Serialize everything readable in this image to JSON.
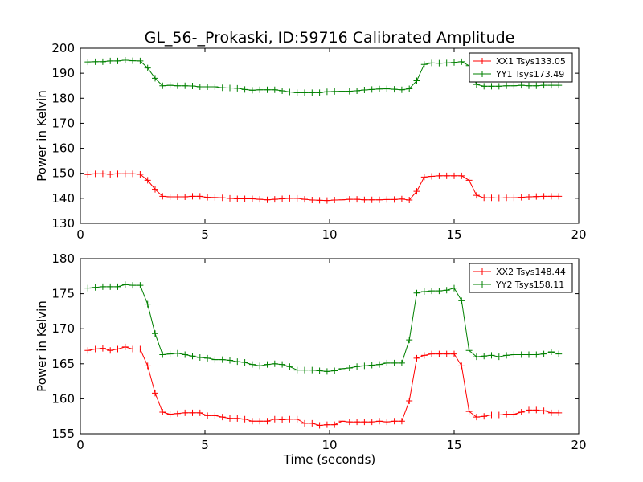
{
  "title": "GL_56-_Prokaski, ID:59716 Calibrated Amplitude",
  "colors": {
    "xx": "#ff0000",
    "yy": "#008000"
  },
  "chart_data": [
    {
      "type": "line",
      "xlabel": "",
      "ylabel": "Power in Kelvin",
      "xlim": [
        0,
        20
      ],
      "ylim": [
        130,
        200
      ],
      "xticks": [
        "0",
        "5",
        "10",
        "15",
        "20"
      ],
      "yticks": [
        "130",
        "140",
        "150",
        "160",
        "170",
        "180",
        "190",
        "200"
      ],
      "grid": false,
      "marker": "+",
      "legend_position": "top-right",
      "x": [
        0.3,
        0.6,
        0.9,
        1.2,
        1.5,
        1.8,
        2.1,
        2.4,
        2.7,
        3.0,
        3.3,
        3.6,
        3.9,
        4.2,
        4.5,
        4.8,
        5.1,
        5.4,
        5.7,
        6.0,
        6.3,
        6.6,
        6.9,
        7.2,
        7.5,
        7.8,
        8.1,
        8.4,
        8.7,
        9.0,
        9.3,
        9.6,
        9.9,
        10.2,
        10.5,
        10.8,
        11.1,
        11.4,
        11.7,
        12.0,
        12.3,
        12.6,
        12.9,
        13.2,
        13.5,
        13.8,
        14.1,
        14.4,
        14.7,
        15.0,
        15.3,
        15.6,
        15.9,
        16.2,
        16.5,
        16.8,
        17.1,
        17.4,
        17.7,
        18.0,
        18.3,
        18.6,
        18.9,
        19.2
      ],
      "series": [
        {
          "name": "XX1 Tsys133.05",
          "color_key": "xx",
          "values": [
            149.5,
            149.8,
            149.8,
            149.6,
            149.8,
            149.8,
            149.8,
            149.6,
            147.2,
            143.6,
            140.8,
            140.6,
            140.6,
            140.6,
            140.8,
            140.8,
            140.4,
            140.3,
            140.2,
            140.0,
            139.8,
            139.8,
            139.8,
            139.6,
            139.4,
            139.6,
            139.8,
            140.0,
            140.0,
            139.6,
            139.3,
            139.2,
            139.1,
            139.3,
            139.4,
            139.6,
            139.6,
            139.4,
            139.4,
            139.4,
            139.5,
            139.5,
            139.7,
            139.3,
            142.8,
            148.5,
            148.8,
            149.0,
            149.0,
            149.0,
            149.0,
            147.2,
            141.2,
            140.2,
            140.2,
            140.1,
            140.2,
            140.2,
            140.4,
            140.6,
            140.7,
            140.8,
            140.8,
            140.8
          ]
        },
        {
          "name": "YY1 Tsys173.49",
          "color_key": "yy",
          "values": [
            194.5,
            194.6,
            194.6,
            194.9,
            194.9,
            195.2,
            195.0,
            194.9,
            192.1,
            188.0,
            185.0,
            185.2,
            185.0,
            185.0,
            184.9,
            184.6,
            184.6,
            184.6,
            184.2,
            184.1,
            184.0,
            183.5,
            183.2,
            183.4,
            183.4,
            183.4,
            183.0,
            182.5,
            182.2,
            182.2,
            182.2,
            182.2,
            182.6,
            182.7,
            182.8,
            182.8,
            183.0,
            183.3,
            183.5,
            183.7,
            183.8,
            183.6,
            183.4,
            183.8,
            187.0,
            193.5,
            194.1,
            194.0,
            194.1,
            194.3,
            194.6,
            193.0,
            185.5,
            184.8,
            184.8,
            184.8,
            185.0,
            185.0,
            185.2,
            185.0,
            185.0,
            185.2,
            185.2,
            185.2
          ]
        }
      ]
    },
    {
      "type": "line",
      "xlabel": "Time (seconds)",
      "ylabel": "Power in Kelvin",
      "xlim": [
        0,
        20
      ],
      "ylim": [
        155,
        180
      ],
      "xticks": [
        "0",
        "5",
        "10",
        "15",
        "20"
      ],
      "yticks": [
        "155",
        "160",
        "165",
        "170",
        "175",
        "180"
      ],
      "grid": false,
      "marker": "+",
      "legend_position": "top-right",
      "x": [
        0.3,
        0.6,
        0.9,
        1.2,
        1.5,
        1.8,
        2.1,
        2.4,
        2.7,
        3.0,
        3.3,
        3.6,
        3.9,
        4.2,
        4.5,
        4.8,
        5.1,
        5.4,
        5.7,
        6.0,
        6.3,
        6.6,
        6.9,
        7.2,
        7.5,
        7.8,
        8.1,
        8.4,
        8.7,
        9.0,
        9.3,
        9.6,
        9.9,
        10.2,
        10.5,
        10.8,
        11.1,
        11.4,
        11.7,
        12.0,
        12.3,
        12.6,
        12.9,
        13.2,
        13.5,
        13.8,
        14.1,
        14.4,
        14.7,
        15.0,
        15.3,
        15.6,
        15.9,
        16.2,
        16.5,
        16.8,
        17.1,
        17.4,
        17.7,
        18.0,
        18.3,
        18.6,
        18.9,
        19.2
      ],
      "series": [
        {
          "name": "XX2 Tsys148.44",
          "color_key": "xx",
          "values": [
            166.9,
            167.1,
            167.2,
            166.9,
            167.1,
            167.4,
            167.1,
            167.1,
            164.7,
            160.8,
            158.1,
            157.8,
            157.9,
            158.0,
            158.0,
            158.0,
            157.6,
            157.6,
            157.4,
            157.2,
            157.2,
            157.1,
            156.8,
            156.8,
            156.8,
            157.1,
            157.0,
            157.1,
            157.1,
            156.5,
            156.5,
            156.2,
            156.3,
            156.3,
            156.8,
            156.7,
            156.7,
            156.7,
            156.7,
            156.8,
            156.7,
            156.8,
            156.8,
            159.7,
            165.8,
            166.2,
            166.4,
            166.4,
            166.4,
            166.4,
            164.7,
            158.2,
            157.4,
            157.5,
            157.7,
            157.7,
            157.8,
            157.8,
            158.1,
            158.4,
            158.4,
            158.3,
            158.0,
            158.0
          ]
        },
        {
          "name": "YY2 Tsys158.11",
          "color_key": "yy",
          "values": [
            175.8,
            175.9,
            176.0,
            176.0,
            176.0,
            176.3,
            176.2,
            176.2,
            173.5,
            169.3,
            166.3,
            166.4,
            166.5,
            166.3,
            166.1,
            165.9,
            165.8,
            165.6,
            165.6,
            165.5,
            165.3,
            165.2,
            164.9,
            164.7,
            164.9,
            165.0,
            164.9,
            164.6,
            164.1,
            164.1,
            164.1,
            164.0,
            163.9,
            164.0,
            164.3,
            164.4,
            164.6,
            164.7,
            164.8,
            164.9,
            165.1,
            165.1,
            165.1,
            168.4,
            175.1,
            175.3,
            175.4,
            175.4,
            175.5,
            175.8,
            174.0,
            166.9,
            166.0,
            166.1,
            166.2,
            166.0,
            166.2,
            166.3,
            166.3,
            166.3,
            166.3,
            166.4,
            166.7,
            166.4
          ]
        }
      ]
    }
  ]
}
